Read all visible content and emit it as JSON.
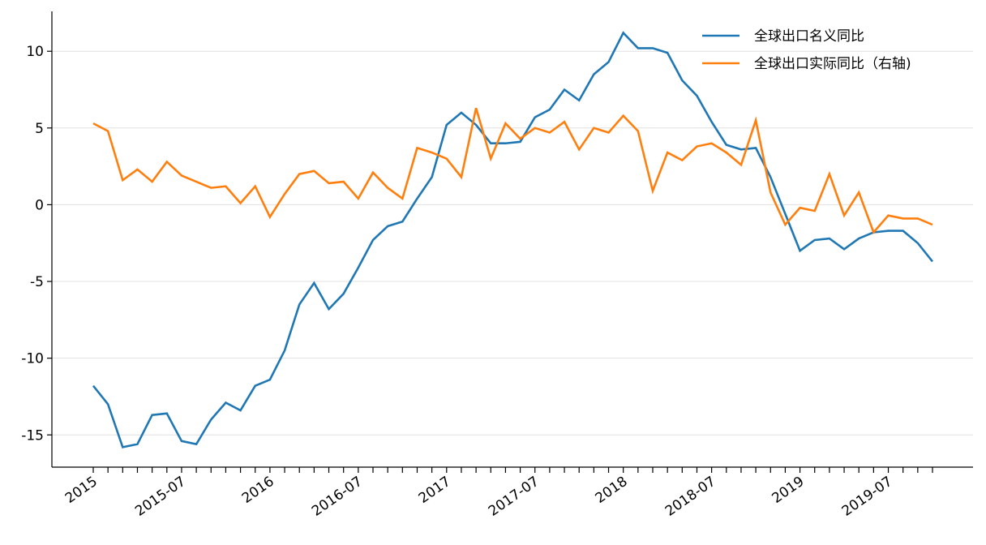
{
  "chart_data": {
    "type": "line",
    "categories": [
      "2015",
      null,
      null,
      null,
      null,
      null,
      "2015-07",
      null,
      null,
      null,
      null,
      null,
      "2016",
      null,
      null,
      null,
      null,
      null,
      "2016-07",
      null,
      null,
      null,
      null,
      null,
      "2017",
      null,
      null,
      null,
      null,
      null,
      "2017-07",
      null,
      null,
      null,
      null,
      null,
      "2018",
      null,
      null,
      null,
      null,
      null,
      "2018-07",
      null,
      null,
      null,
      null,
      null,
      "2019",
      null,
      null,
      null,
      null,
      null,
      "2019-07",
      null,
      null,
      null
    ],
    "series": [
      {
        "name": "全球出口名义同比",
        "color": "#1f77b4",
        "values": [
          -11.8,
          -13.0,
          -15.8,
          -15.6,
          -13.7,
          -13.6,
          -15.4,
          -15.6,
          -14.0,
          -12.9,
          -13.4,
          -11.8,
          -11.4,
          -9.5,
          -6.5,
          -5.1,
          -6.8,
          -5.8,
          -4.1,
          -2.3,
          -1.4,
          -1.1,
          0.4,
          1.8,
          5.2,
          6.0,
          5.2,
          4.0,
          4.0,
          4.1,
          5.7,
          6.2,
          7.5,
          6.8,
          8.5,
          9.3,
          11.2,
          10.2,
          10.2,
          9.9,
          8.1,
          7.1,
          5.4,
          3.9,
          3.6,
          3.7,
          1.8,
          -0.6,
          -3.0,
          -2.3,
          -2.2,
          -2.9,
          -2.2,
          -1.8,
          -1.7,
          -1.7,
          -2.5,
          -3.7
        ]
      },
      {
        "name": "全球出口实际同比（右轴)",
        "color": "#ff7f0e",
        "values": [
          5.3,
          4.8,
          1.6,
          2.3,
          1.5,
          2.8,
          1.9,
          1.5,
          1.1,
          1.2,
          0.1,
          1.2,
          -0.8,
          0.7,
          2.0,
          2.2,
          1.4,
          1.5,
          0.4,
          2.1,
          1.1,
          0.4,
          3.7,
          3.4,
          3.0,
          1.8,
          6.3,
          3.0,
          5.3,
          4.3,
          5.0,
          4.7,
          5.4,
          3.6,
          5.0,
          4.7,
          5.8,
          4.8,
          0.9,
          3.4,
          2.9,
          3.8,
          4.0,
          3.4,
          2.6,
          5.5,
          0.8,
          -1.3,
          -0.2,
          -0.4,
          2.0,
          -0.7,
          0.8,
          -1.8,
          -0.7,
          -0.9,
          -0.9,
          -1.3
        ]
      }
    ],
    "ylim": [
      -17.1,
      12.6
    ],
    "yticks": [
      -15,
      -10,
      -5,
      0,
      5,
      10
    ],
    "grid": true,
    "legend": "upper right"
  }
}
